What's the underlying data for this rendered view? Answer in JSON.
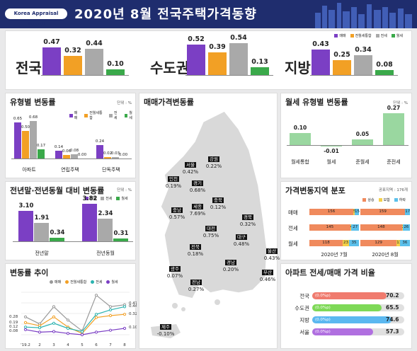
{
  "header": {
    "logo": "Korea Appraisal Board",
    "title": "2020년 8월  전국주택가격동향"
  },
  "colors": {
    "sale": "#7b3fc4",
    "mix": "#f2a025",
    "jeonse": "#a9a9a9",
    "monthly": "#3aa94a",
    "rise": "#f08a5d",
    "flat": "#f3d04a",
    "fall": "#5bc0eb"
  },
  "legend": {
    "sale": "매매",
    "mix": "전월세통합",
    "jeonse": "전세",
    "monthly": "월세"
  },
  "regions": [
    {
      "name": "전국",
      "values": [
        0.47,
        0.32,
        0.44,
        0.1
      ]
    },
    {
      "name": "수도권",
      "values": [
        0.52,
        0.39,
        0.54,
        0.13
      ]
    },
    {
      "name": "지방",
      "values": [
        0.43,
        0.25,
        0.34,
        0.08
      ]
    }
  ],
  "type_change": {
    "title": "유형별 변동률",
    "unit": "단위 : %",
    "categories": [
      "아파트",
      "연립주택",
      "단독주택"
    ],
    "values": [
      [
        0.65,
        0.5,
        0.68,
        0.17
      ],
      [
        0.14,
        0.06,
        0.08,
        0.0
      ],
      [
        0.24,
        0.02,
        0.03,
        0.0
      ]
    ]
  },
  "yoy": {
    "title": "전년말·전년동월 대비 변동률",
    "unit": "단위 : %",
    "categories": [
      "전년말",
      "전년동월"
    ],
    "values": [
      [
        3.1,
        1.91,
        0.34
      ],
      [
        3.82,
        2.34,
        0.31
      ]
    ]
  },
  "trend": {
    "title": "변동률 추이",
    "x": [
      "'19.2",
      "2",
      "3",
      "4",
      "5",
      "6",
      "7",
      "8"
    ],
    "end_labels": [
      "0.47",
      "0.44",
      "0.32",
      "0.10"
    ],
    "start_labels": [
      "0.28",
      "0.19",
      "0.12",
      "0.08"
    ]
  },
  "map": {
    "title": "매매가격변동률",
    "cities": [
      {
        "n": "강원",
        "v": "0.22%"
      },
      {
        "n": "서울",
        "v": "0.42%"
      },
      {
        "n": "인천",
        "v": "0.19%"
      },
      {
        "n": "경기",
        "v": "0.68%"
      },
      {
        "n": "충북",
        "v": "0.12%"
      },
      {
        "n": "세종",
        "v": "7.69%"
      },
      {
        "n": "충남",
        "v": "0.57%"
      },
      {
        "n": "경북",
        "v": "0.32%"
      },
      {
        "n": "대전",
        "v": "0.75%"
      },
      {
        "n": "대구",
        "v": "0.48%"
      },
      {
        "n": "전북",
        "v": "0.18%"
      },
      {
        "n": "울산",
        "v": "0.43%"
      },
      {
        "n": "경남",
        "v": "0.20%"
      },
      {
        "n": "광주",
        "v": "0.07%"
      },
      {
        "n": "부산",
        "v": "0.46%"
      },
      {
        "n": "전남",
        "v": "0.27%"
      },
      {
        "n": "제주",
        "v": "-0.10%"
      }
    ]
  },
  "monthly_type": {
    "title": "월세 유형별 변동률",
    "unit": "단위 : %",
    "categories": [
      "월세통합",
      "월세",
      "준월세",
      "준전세"
    ],
    "values": [
      0.1,
      -0.01,
      0.05,
      0.27
    ]
  },
  "dist": {
    "title": "가격변동지역 분포",
    "unit": "공표지역 : 176개",
    "legend": [
      "상승",
      "보합",
      "하락"
    ],
    "rows": [
      "매매",
      "전세",
      "월세"
    ],
    "months": [
      "2020년 7월",
      "2020년 8월"
    ],
    "data": [
      [
        [
          156,
          5,
          15
        ],
        [
          159,
          0,
          17
        ]
      ],
      [
        [
          145,
          4,
          27
        ],
        [
          148,
          2,
          26
        ]
      ],
      [
        [
          118,
          23,
          35
        ],
        [
          129,
          11,
          36
        ]
      ]
    ]
  },
  "ratio": {
    "title": "아파트 전세/매매 가격 비율",
    "rows": [
      {
        "n": "전국",
        "ch": "(0.0%p)",
        "v": "70.2",
        "c": "#f07b6e"
      },
      {
        "n": "수도권",
        "ch": "(0.0%p)",
        "v": "65.5",
        "c": "#7ed957"
      },
      {
        "n": "지방",
        "ch": "(0.0%p)",
        "v": "74.6",
        "c": "#5bb8f0"
      },
      {
        "n": "서울",
        "ch": "(0.0%p)",
        "v": "57.3",
        "c": "#b06fe0"
      }
    ]
  }
}
